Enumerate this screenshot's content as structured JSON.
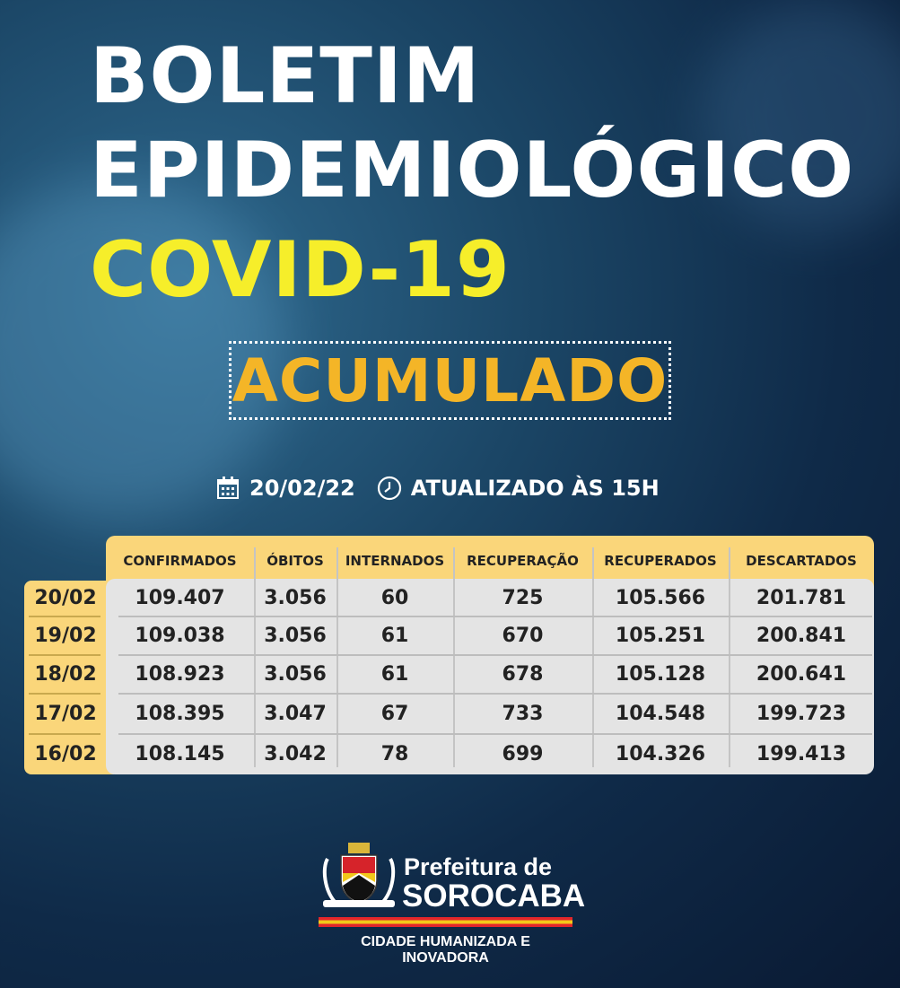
{
  "title": {
    "line1": "BOLETIM",
    "line2": "EPIDEMIOLÓGICO",
    "line3": "COVID-19"
  },
  "badge": "ACUMULADO",
  "date_line": {
    "date": "20/02/22",
    "updated": "ATUALIZADO ÀS 15H",
    "date_icon": "calendar-icon",
    "time_icon": "clock-icon"
  },
  "colors": {
    "title": "#ffffff",
    "covid": "#f6ee2a",
    "badge": "#f4b527",
    "table_header": "#fad67a",
    "table_body": "#e4e4e4"
  },
  "table": {
    "headers": [
      "CONFIRMADOS",
      "ÓBITOS",
      "INTERNADOS",
      "RECUPERAÇÃO",
      "RECUPERADOS",
      "DESCARTADOS"
    ],
    "rows": [
      {
        "date": "20/02",
        "values": [
          "109.407",
          "3.056",
          "60",
          "725",
          "105.566",
          "201.781"
        ]
      },
      {
        "date": "19/02",
        "values": [
          "109.038",
          "3.056",
          "61",
          "670",
          "105.251",
          "200.841"
        ]
      },
      {
        "date": "18/02",
        "values": [
          "108.923",
          "3.056",
          "61",
          "678",
          "105.128",
          "200.641"
        ]
      },
      {
        "date": "17/02",
        "values": [
          "108.395",
          "3.047",
          "67",
          "733",
          "104.548",
          "199.723"
        ]
      },
      {
        "date": "16/02",
        "values": [
          "108.145",
          "3.042",
          "78",
          "699",
          "104.326",
          "199.413"
        ]
      }
    ]
  },
  "footer": {
    "line1": "Prefeitura de",
    "line2": "SOROCABA",
    "tagline": "CIDADE HUMANIZADA E INOVADORA"
  }
}
